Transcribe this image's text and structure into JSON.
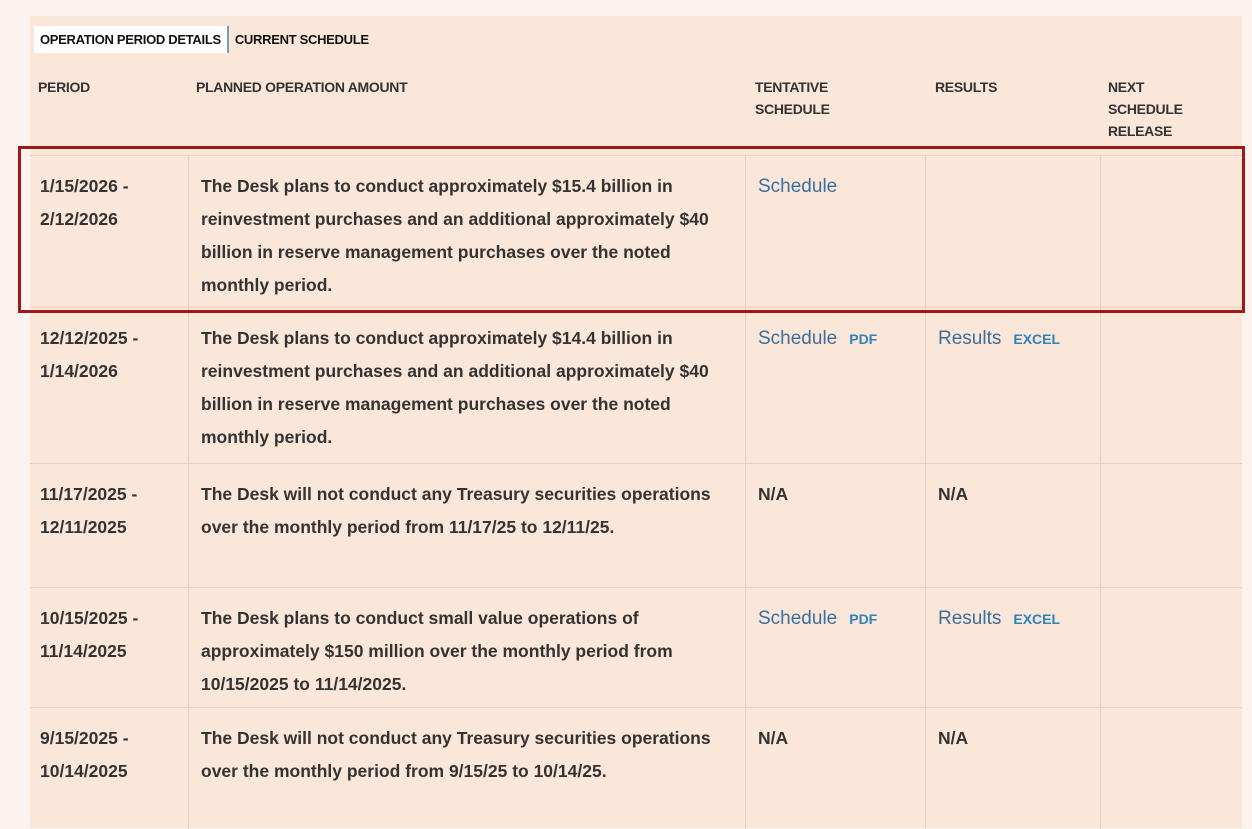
{
  "tabs": [
    "OPERATION PERIOD DETAILS",
    "CURRENT SCHEDULE"
  ],
  "table": {
    "headers": [
      "PERIOD",
      "PLANNED OPERATION AMOUNT",
      "TENTATIVE SCHEDULE",
      "RESULTS",
      "NEXT SCHEDULE RELEASE"
    ],
    "rows": [
      {
        "period": [
          "1/15/2026 -",
          "2/12/2026"
        ],
        "amount": "The Desk plans to conduct approximately $15.4 billion in reinvestment purchases and an additional approximately $40 billion in reserve management purchases over the noted monthly period.",
        "schedule": {
          "link": "Schedule"
        }
      },
      {
        "period": [
          "12/12/2025 -",
          "1/14/2026"
        ],
        "amount": "The Desk plans to conduct approximately $14.4 billion in reinvestment purchases and an additional approximately $40 billion in reserve management purchases over the noted monthly period.",
        "schedule": {
          "link": "Schedule",
          "file": "PDF"
        },
        "results": {
          "link": "Results",
          "file": "EXCEL"
        }
      },
      {
        "period": [
          "11/17/2025 -",
          "12/11/2025"
        ],
        "amount": "The Desk will not conduct any Treasury securities operations over the monthly period from 11/17/25 to 12/11/25.",
        "schedule": "N/A",
        "results": "N/A"
      },
      {
        "period": [
          "10/15/2025 -",
          "11/14/2025"
        ],
        "amount": "The Desk plans to conduct small value operations of approximately $150 million over the monthly period from 10/15/2025 to 11/14/2025.",
        "schedule": {
          "link": "Schedule",
          "file": "PDF"
        },
        "results": {
          "link": "Results",
          "file": "EXCEL"
        }
      },
      {
        "period": [
          "9/15/2025 -",
          "10/14/2025"
        ],
        "amount": "The Desk will not conduct any Treasury securities operations over the monthly period from 9/15/25 to 10/14/25.",
        "schedule": "N/A",
        "results": "N/A"
      }
    ]
  }
}
